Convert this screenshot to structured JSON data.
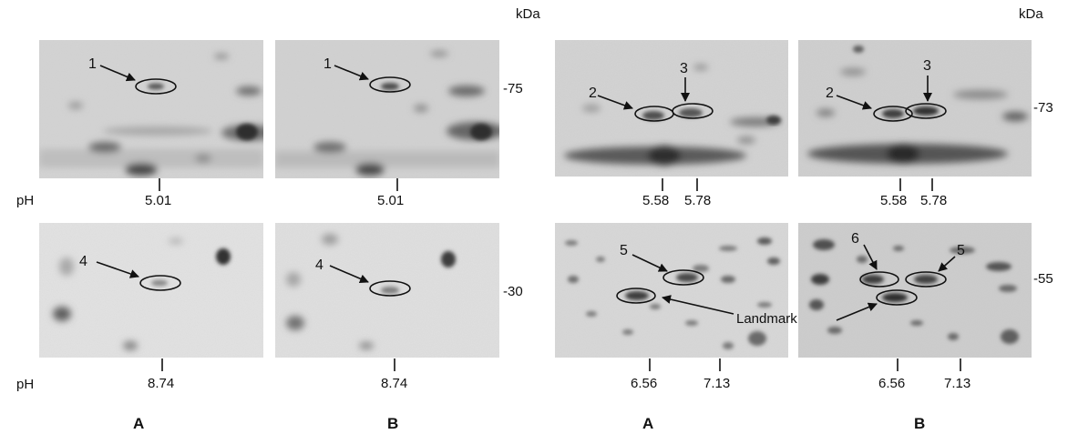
{
  "figure": {
    "unit_kda": "kDa",
    "unit_ph": "pH",
    "column_labels": [
      "A",
      "B",
      "A",
      "B"
    ],
    "mw_markers": {
      "left_top": "-75",
      "left_bottom": "-30",
      "right_top": "-73",
      "right_bottom": "-55"
    },
    "ph_values": {
      "p1": "5.01",
      "p2": "5.01",
      "p3a": "5.58",
      "p3b": "5.78",
      "p4a": "5.58",
      "p4b": "5.78",
      "p5": "8.74",
      "p6": "8.74",
      "p7a": "6.56",
      "p7b": "7.13",
      "p8a": "6.56",
      "p8b": "7.13"
    },
    "spot_labels": {
      "s1": "1",
      "s2": "2",
      "s3": "3",
      "s4": "4",
      "s5": "5",
      "s6": "6"
    },
    "landmark": "Landmark"
  }
}
